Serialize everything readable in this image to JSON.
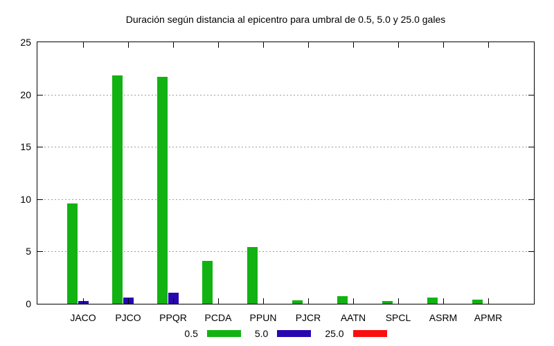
{
  "window": {
    "background": "#ffffff",
    "axis_color": "#000000",
    "grid_color": "#9b9b9b"
  },
  "chart_data": {
    "type": "bar",
    "title": "Duración según distancia al epicentro para umbral de 0.5, 5.0 y 25.0 gales",
    "xlabel": "",
    "ylabel": "",
    "categories": [
      "JACO",
      "PJCO",
      "PPQR",
      "PCDA",
      "PPUN",
      "PJCR",
      "AATN",
      "SPCL",
      "ASRM",
      "APMR"
    ],
    "series": [
      {
        "name": "0.5",
        "color": "#12b212",
        "values": [
          9.6,
          21.8,
          21.7,
          4.1,
          5.45,
          0.3,
          0.7,
          0.26,
          0.57,
          0.37
        ]
      },
      {
        "name": "5.0",
        "color": "#2807b0",
        "values": [
          0.25,
          0.62,
          1.08,
          0,
          0,
          0,
          0,
          0,
          0,
          0
        ]
      },
      {
        "name": "25.0",
        "color": "#fa0f0f",
        "values": [
          0,
          0,
          0,
          0,
          0,
          0,
          0,
          0,
          0,
          0
        ]
      }
    ],
    "ylim": [
      0,
      25
    ],
    "yticks": [
      0,
      5,
      10,
      15,
      20,
      25
    ],
    "ytick_labels": [
      "0",
      "5",
      "10",
      "15",
      "20",
      "25"
    ],
    "grid": "horizontal-dotted",
    "legend_position": "bottom-center",
    "border": "box-with-mirrored-ticks"
  }
}
